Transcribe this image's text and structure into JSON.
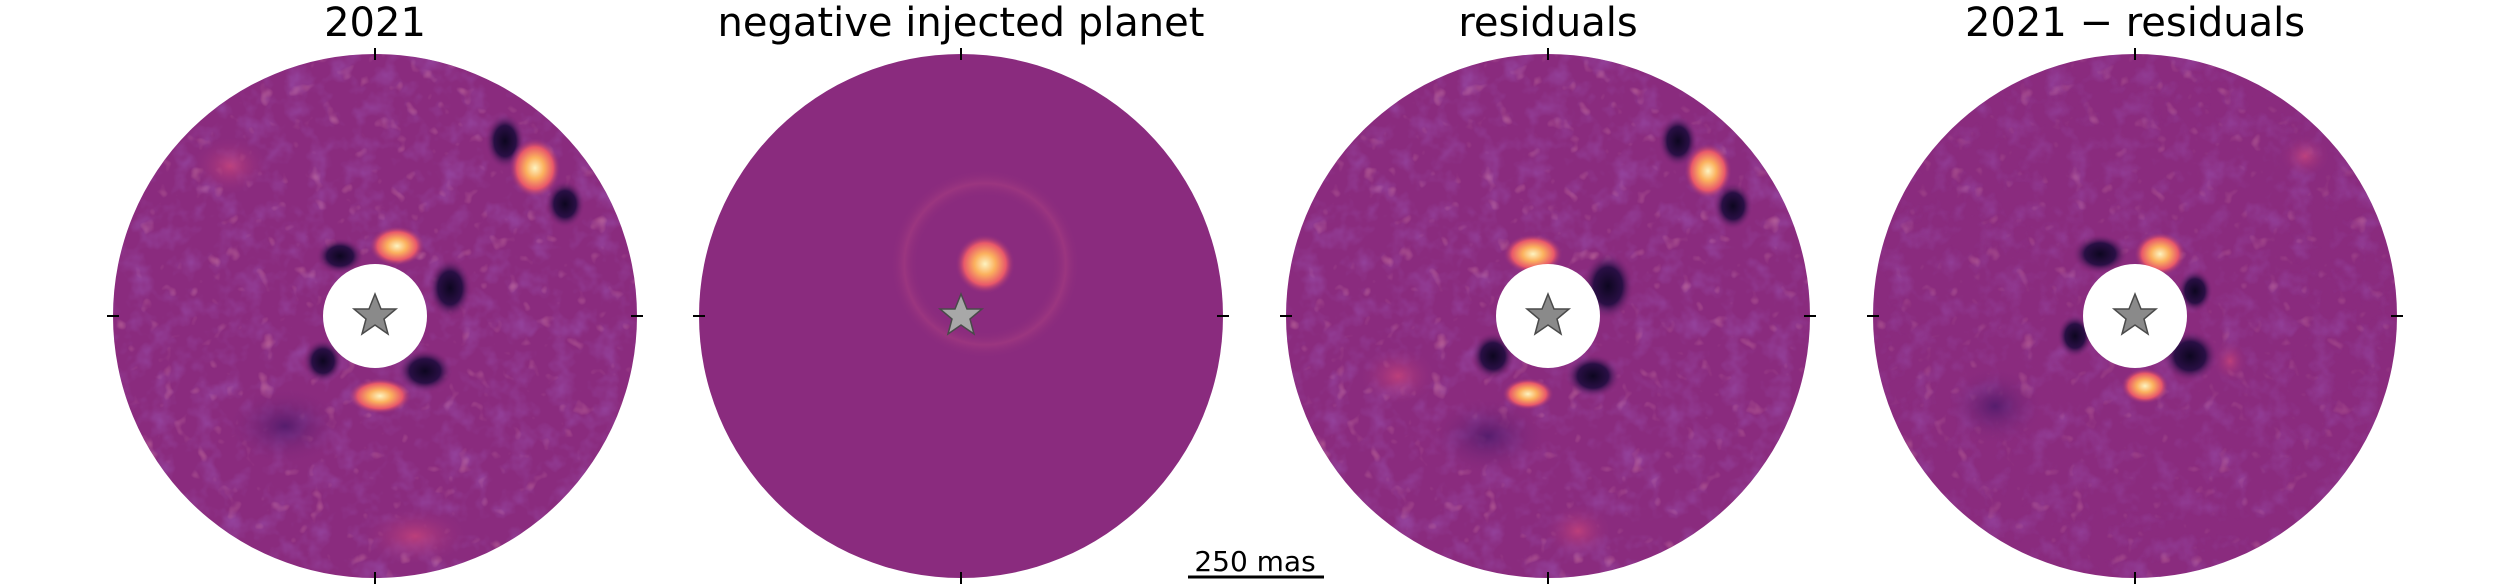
{
  "figure": {
    "panels": [
      {
        "id": "p2021",
        "title": "2021",
        "kind": "data",
        "planet": true,
        "disk": true
      },
      {
        "id": "pinj",
        "title": "negative injected planet",
        "kind": "model",
        "planet": false,
        "disk": false
      },
      {
        "id": "pres",
        "title": "residuals",
        "kind": "data",
        "planet": true,
        "disk": true
      },
      {
        "id": "pdiff",
        "title": "2021 − residuals",
        "kind": "data",
        "planet": false,
        "disk": true
      }
    ],
    "scalebar": {
      "label": "250 mas"
    },
    "colors": {
      "background_purple": "#8a2b7e",
      "dark": "#1a0b2e",
      "bright": "#fde6a8",
      "star_fill": "#8a8a8a",
      "star_outline": "#4a4a4a",
      "mask": "#ffffff"
    },
    "colormap": "magma",
    "star_marker": "star"
  }
}
